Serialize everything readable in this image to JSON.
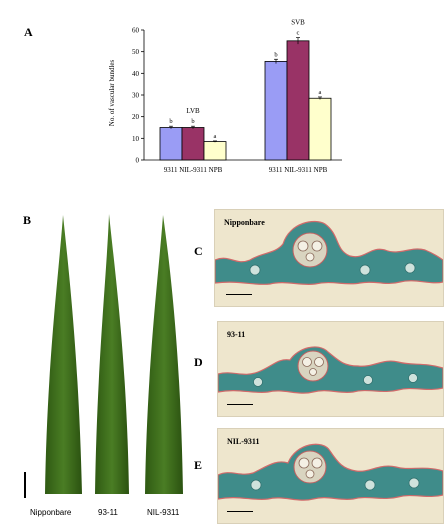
{
  "panels": {
    "a_letter": "A",
    "b_letter": "B",
    "c_letter": "C",
    "d_letter": "D",
    "e_letter": "E"
  },
  "colors": {
    "series_9311": "#9a9cf5",
    "series_nil9311": "#993366",
    "series_npb": "#ffffcc",
    "leaf_green": "#3e6b1c",
    "section_bg": "#eae2c9",
    "tissue_teal": "#3f8c8a",
    "cuticle_red": "#d06a6a"
  },
  "chart_data": {
    "type": "bar",
    "ylabel": "No. of vascular bundles",
    "ylim": [
      0,
      60
    ],
    "yticks": [
      0,
      10,
      20,
      30,
      40,
      50,
      60
    ],
    "groups": [
      {
        "name": "LVB",
        "categories": [
          "9311",
          "NIL-9311",
          "NPB"
        ],
        "values": [
          15,
          15,
          8.5
        ],
        "errors": [
          0.6,
          0.6,
          0.3
        ],
        "letters": [
          "b",
          "b",
          "a"
        ]
      },
      {
        "name": "SVB",
        "categories": [
          "9311",
          "NIL-9311",
          "NPB"
        ],
        "values": [
          45.5,
          55,
          28.5
        ],
        "errors": [
          1.0,
          1.5,
          0.6
        ],
        "letters": [
          "b",
          "c",
          "a"
        ]
      }
    ],
    "group_axis_labels": [
      "9311 NIL-9311 NPB",
      "9311 NIL-9311 NPB"
    ],
    "grid": false,
    "legend": "none"
  },
  "leaves": {
    "labels": [
      "Nipponbare",
      "93-11",
      "NIL-9311"
    ]
  },
  "sections": {
    "c_label": "Nipponbare",
    "d_label": "93-11",
    "e_label": "NIL-9311"
  }
}
